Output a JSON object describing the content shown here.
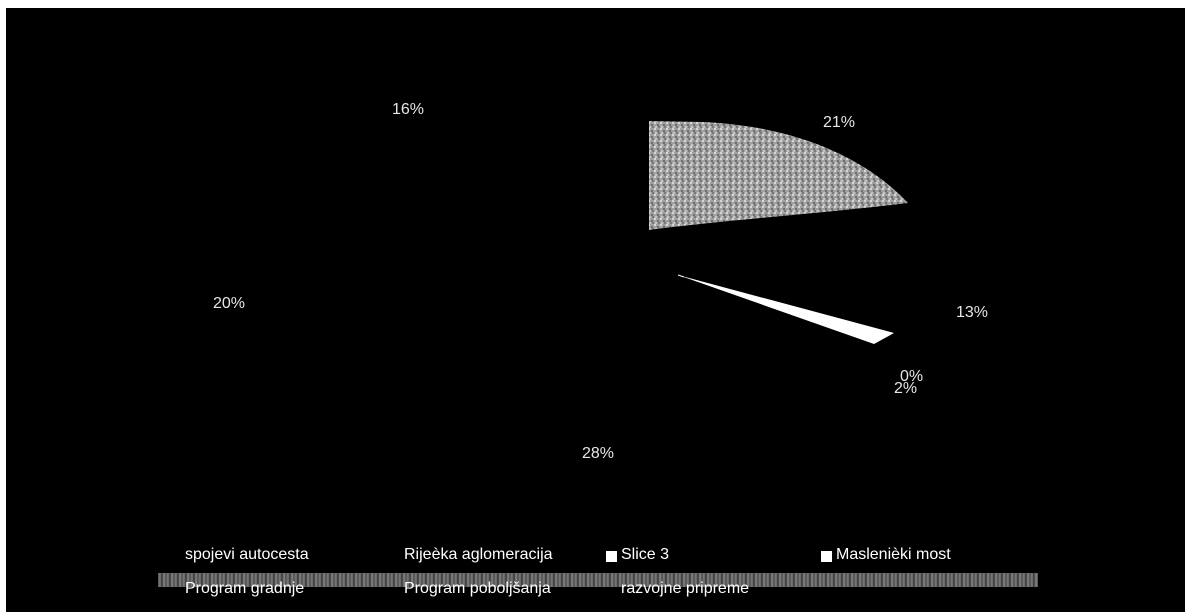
{
  "chart_data": {
    "type": "pie",
    "slices": [
      {
        "label": "spojevi autocesta",
        "value": 16,
        "value_label": "16%",
        "color": "#000000"
      },
      {
        "label": "Rijeèka aglomeracija",
        "value": 21,
        "value_label": "21%",
        "color": "#a8a8a8"
      },
      {
        "label": "Slice 3",
        "value": 0,
        "value_label": "0%",
        "color": "#ffffff"
      },
      {
        "label": "Maslenièki most",
        "value": 2,
        "value_label": "2%",
        "color": "#ffffff"
      },
      {
        "label": "Program gradnje",
        "value": 13,
        "value_label": "13%",
        "color": "#000000"
      },
      {
        "label": "Program poboljšanja",
        "value": 28,
        "value_label": "28%",
        "color": "#000000"
      },
      {
        "label": "razvojne pripreme",
        "value": 20,
        "value_label": "20%",
        "color": "#000000"
      }
    ],
    "legend": {
      "placement": "bottom",
      "rows": [
        [
          "spojevi autocesta",
          "Rijeèka aglomeracija",
          "Slice 3",
          "Maslenièki most"
        ],
        [
          "Program gradnje",
          "Program poboljšanja",
          "razvojne pripreme"
        ]
      ]
    },
    "colors": {
      "background": "#000000",
      "text": "#ffffff",
      "highlight": "#a8a8a8"
    }
  }
}
